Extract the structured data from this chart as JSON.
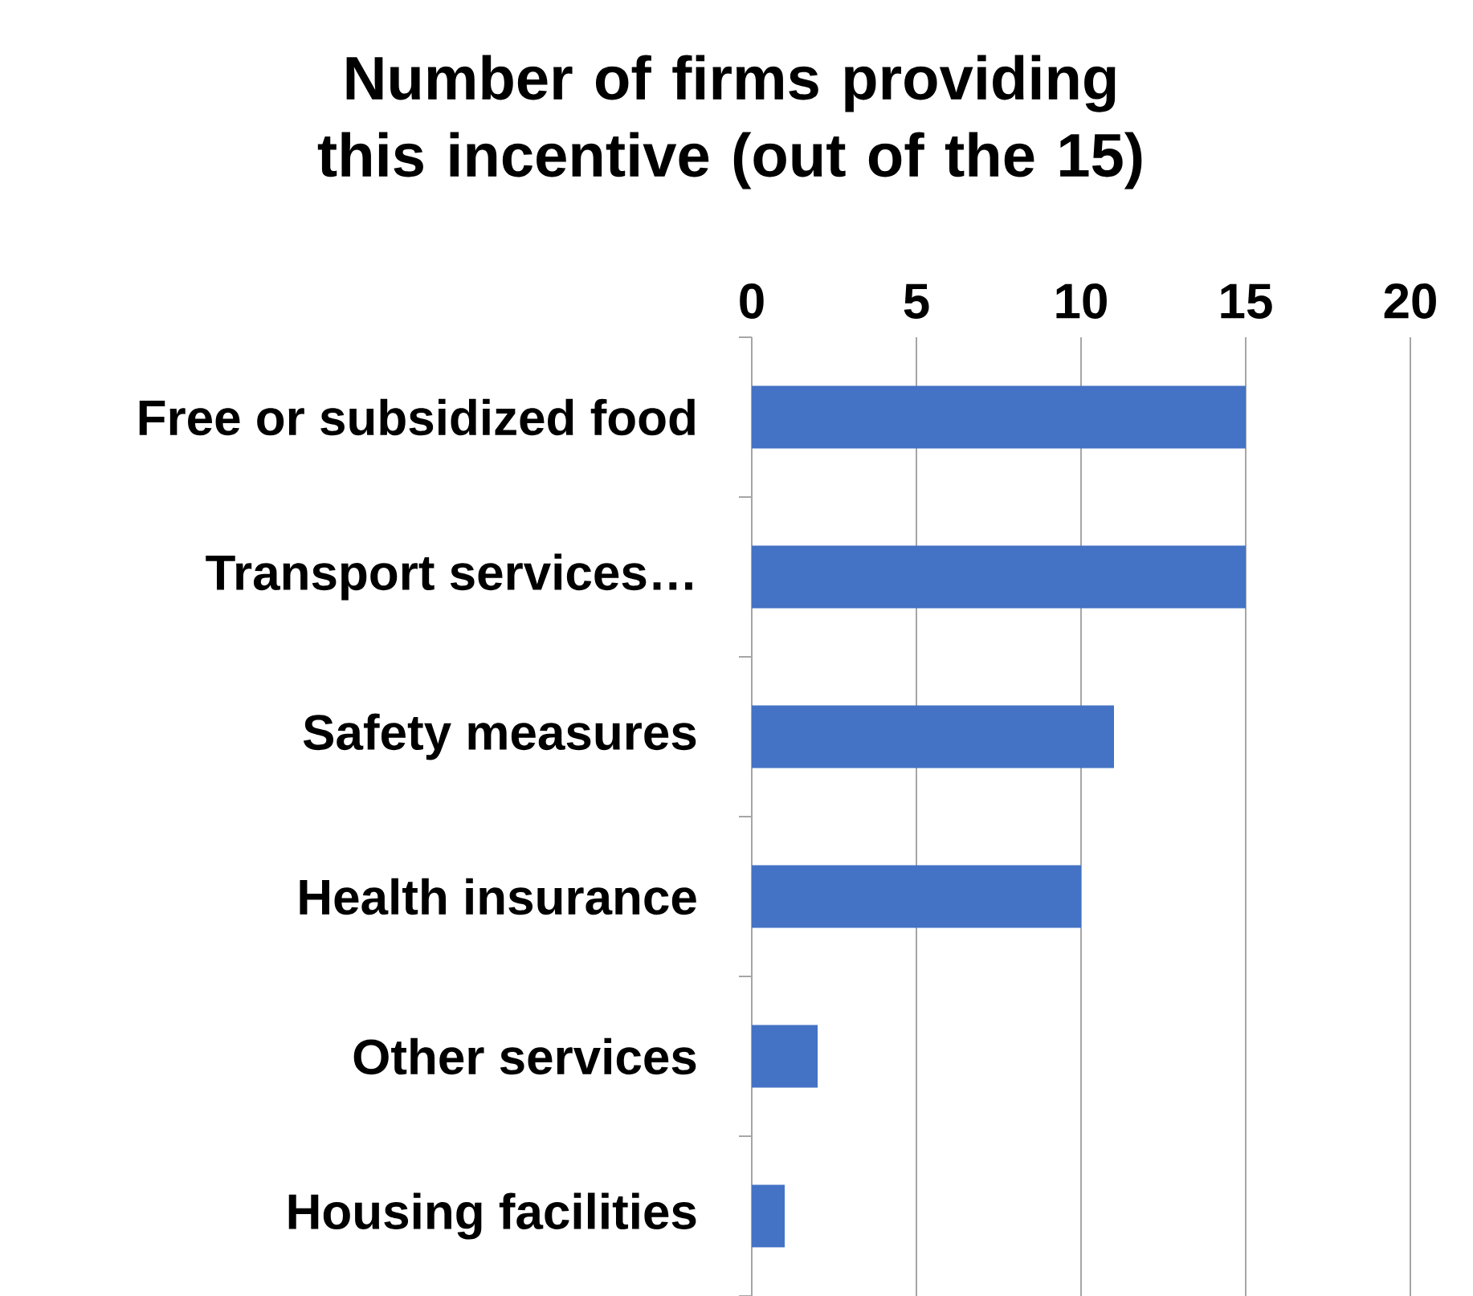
{
  "chart_data": {
    "type": "bar",
    "orientation": "horizontal",
    "title": "Number of firms providing this incentive (out of the 15)",
    "categories": [
      "Free or subsidized food",
      "Transport services…",
      "Safety measures",
      "Health insurance",
      "Other services",
      "Housing facilities"
    ],
    "values": [
      15,
      15,
      11,
      10,
      2,
      1
    ],
    "color": "#4472c4",
    "xlim": [
      0,
      20
    ],
    "xticks": [
      0,
      5,
      10,
      15,
      20
    ],
    "grid": "x"
  }
}
